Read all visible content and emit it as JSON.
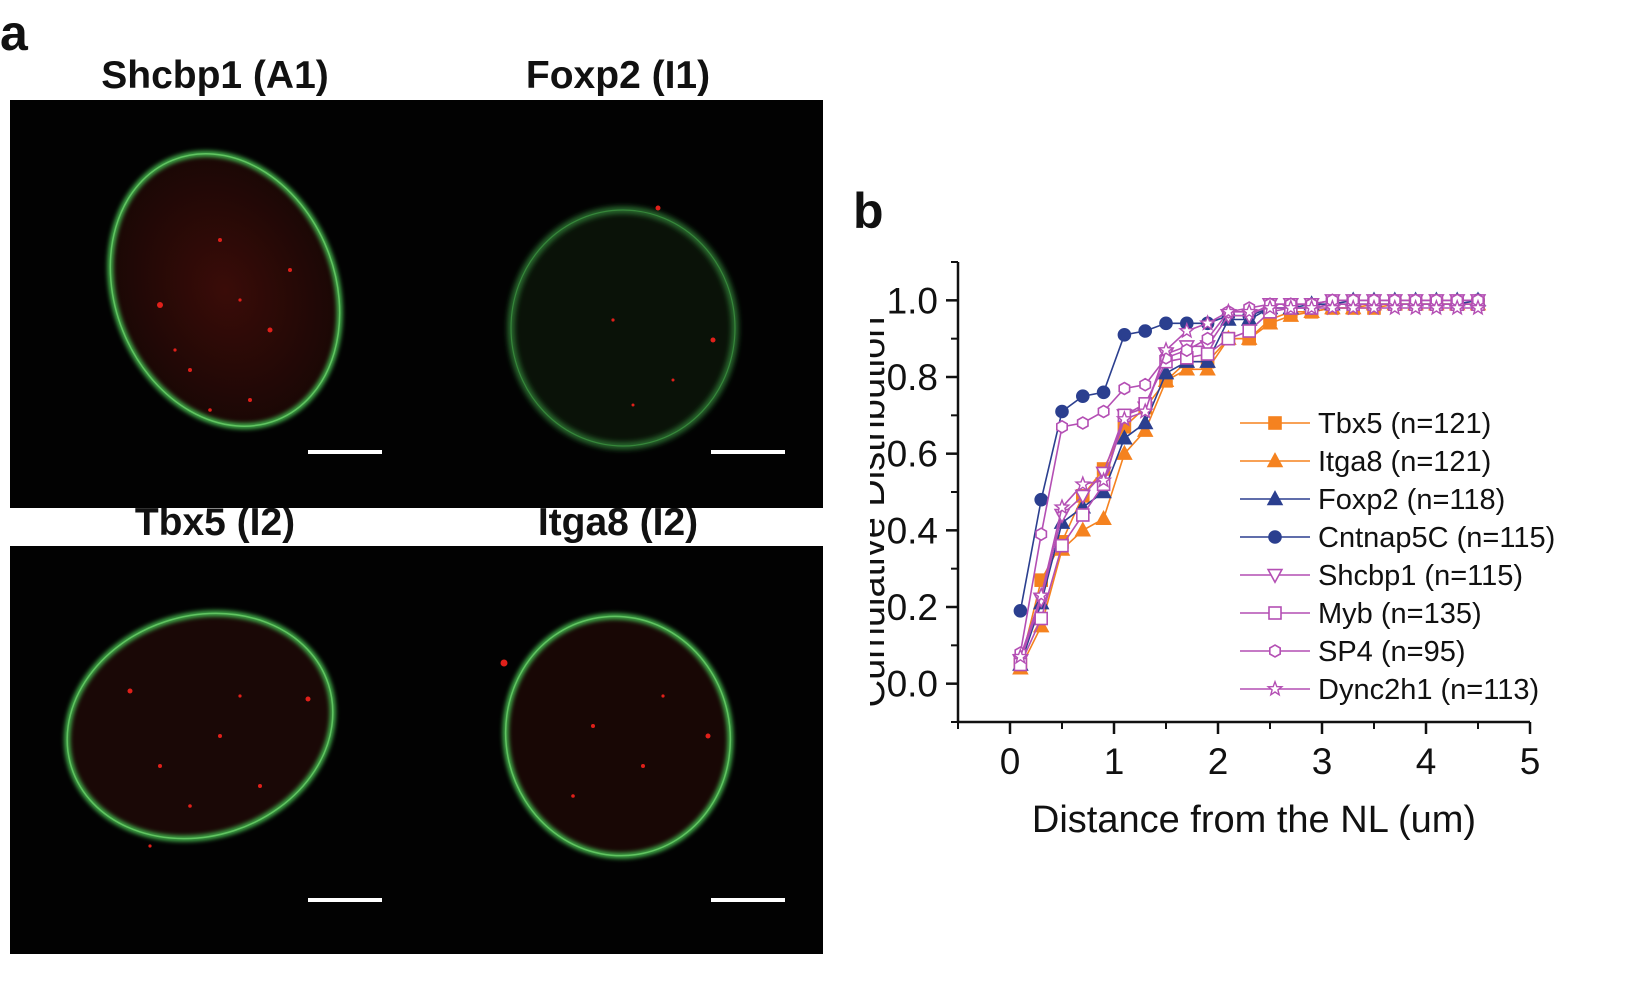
{
  "figure": {
    "panel_a_label": "a",
    "panel_b_label": "b",
    "images": [
      {
        "title": "Shcbp1 (A1)"
      },
      {
        "title": "Foxp2 (I1)"
      },
      {
        "title": "Tbx5 (I2)"
      },
      {
        "title": "Itga8 (I2)"
      }
    ]
  },
  "colors": {
    "orange": "#f5821f",
    "blue": "#2b3f8f",
    "magenta": "#b44fb4",
    "nucleus_rim": "#3fae4a",
    "foci": "#e0201a"
  },
  "chart_data": {
    "type": "line",
    "xlabel": "Distance from the NL (um)",
    "ylabel": "Cumulative Distribution",
    "xlim": [
      -0.5,
      5
    ],
    "ylim": [
      -0.1,
      1.1
    ],
    "xticks": [
      "0",
      "1",
      "2",
      "3",
      "4",
      "5"
    ],
    "yticks": [
      "0.0",
      "0.2",
      "0.4",
      "0.6",
      "0.8",
      "1.0"
    ],
    "legend_position": "right",
    "x": [
      0.1,
      0.3,
      0.5,
      0.7,
      0.9,
      1.1,
      1.3,
      1.5,
      1.7,
      1.9,
      2.1,
      2.3,
      2.5,
      2.7,
      2.9,
      3.1,
      3.3,
      3.5,
      3.7,
      3.9,
      4.1,
      4.3,
      4.5
    ],
    "series": [
      {
        "name": "Tbx5 (n=121)",
        "color": "#f5821f",
        "marker": "square",
        "filled": true,
        "values": [
          0.05,
          0.27,
          0.37,
          0.49,
          0.56,
          0.67,
          0.72,
          0.79,
          0.84,
          0.84,
          0.9,
          0.9,
          0.95,
          0.97,
          0.97,
          0.98,
          0.98,
          0.98,
          0.99,
          0.99,
          0.99,
          0.99,
          0.99
        ]
      },
      {
        "name": "Itga8 (n=121)",
        "color": "#f5821f",
        "marker": "triangle",
        "filled": true,
        "values": [
          0.04,
          0.15,
          0.35,
          0.4,
          0.43,
          0.6,
          0.66,
          0.79,
          0.82,
          0.82,
          0.9,
          0.9,
          0.94,
          0.96,
          0.97,
          0.98,
          0.98,
          0.99,
          0.99,
          0.99,
          0.99,
          0.99,
          0.99
        ]
      },
      {
        "name": "Foxp2 (n=118)",
        "color": "#2b3f8f",
        "marker": "triangle",
        "filled": true,
        "values": [
          0.05,
          0.21,
          0.42,
          0.46,
          0.5,
          0.64,
          0.68,
          0.81,
          0.84,
          0.84,
          0.95,
          0.95,
          0.98,
          0.98,
          0.99,
          0.99,
          1.0,
          1.0,
          1.0,
          1.0,
          1.0,
          1.0,
          1.0
        ]
      },
      {
        "name": "Cntnap5C (n=115)",
        "color": "#2b3f8f",
        "marker": "circle",
        "filled": true,
        "values": [
          0.19,
          0.48,
          0.71,
          0.75,
          0.76,
          0.91,
          0.92,
          0.94,
          0.94,
          0.94,
          0.96,
          0.96,
          0.98,
          0.98,
          0.98,
          0.99,
          0.99,
          0.99,
          0.99,
          0.99,
          0.99,
          0.99,
          1.0
        ]
      },
      {
        "name": "Shcbp1 (n=115)",
        "color": "#b44fb4",
        "marker": "triangle-down",
        "filled": false,
        "values": [
          0.06,
          0.22,
          0.44,
          0.49,
          0.55,
          0.7,
          0.72,
          0.86,
          0.88,
          0.88,
          0.96,
          0.96,
          0.99,
          0.99,
          0.99,
          1.0,
          1.0,
          1.0,
          1.0,
          1.0,
          1.0,
          1.0,
          1.0
        ]
      },
      {
        "name": "Myb (n=135)",
        "color": "#b44fb4",
        "marker": "square",
        "filled": false,
        "values": [
          0.05,
          0.17,
          0.36,
          0.44,
          0.52,
          0.7,
          0.73,
          0.84,
          0.85,
          0.86,
          0.9,
          0.92,
          0.97,
          0.98,
          0.98,
          0.99,
          0.99,
          0.99,
          0.99,
          0.99,
          0.99,
          0.99,
          0.99
        ]
      },
      {
        "name": "SP4 (n=95)",
        "color": "#b44fb4",
        "marker": "hexagon",
        "filled": false,
        "values": [
          0.08,
          0.39,
          0.67,
          0.68,
          0.71,
          0.77,
          0.78,
          0.85,
          0.87,
          0.9,
          0.97,
          0.98,
          0.99,
          0.99,
          0.99,
          1.0,
          1.0,
          1.0,
          1.0,
          1.0,
          1.0,
          1.0,
          1.0
        ]
      },
      {
        "name": "Dync2h1 (n=113)",
        "color": "#b44fb4",
        "marker": "star",
        "filled": false,
        "values": [
          0.07,
          0.23,
          0.46,
          0.52,
          0.53,
          0.69,
          0.71,
          0.87,
          0.92,
          0.94,
          0.97,
          0.97,
          0.98,
          0.98,
          0.98,
          0.98,
          0.98,
          0.98,
          0.98,
          0.98,
          0.98,
          0.98,
          0.98
        ]
      }
    ]
  }
}
